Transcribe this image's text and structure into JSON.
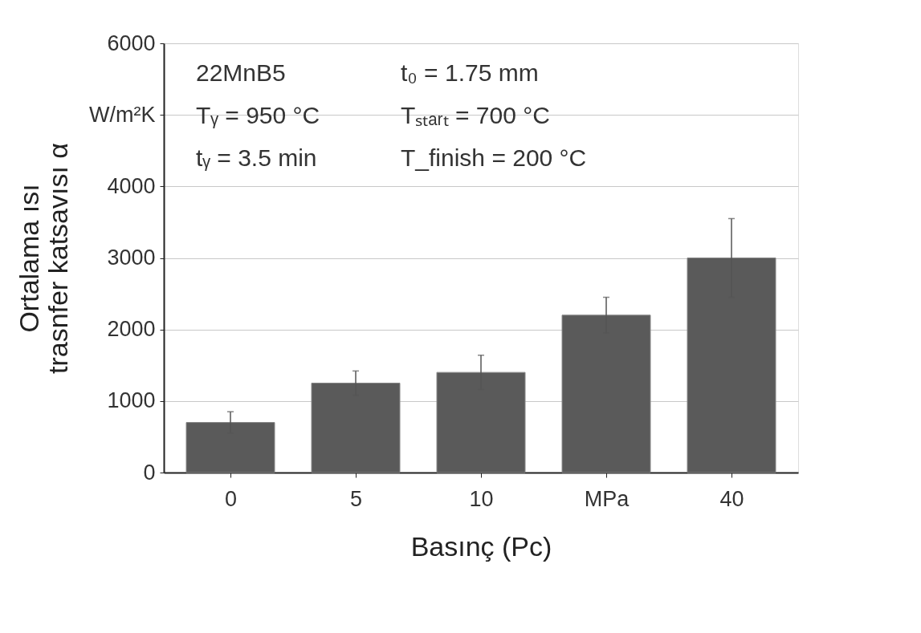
{
  "chart_data": {
    "type": "bar",
    "xlabel": "Basınç (Pc)",
    "ylabel": [
      "Ortalama ısı",
      "trasnfer katsavısı α"
    ],
    "categories": [
      "0",
      "5",
      "10",
      "MPa",
      "40"
    ],
    "values": [
      700,
      1250,
      1400,
      2200,
      3000
    ],
    "errors": [
      150,
      170,
      240,
      250,
      550
    ],
    "color": "#5a5a5a",
    "ylim": [
      0,
      6000
    ],
    "yticks": [
      0,
      1000,
      2000,
      3000,
      4000,
      {
        "value": 5000,
        "label": "W/m²K"
      },
      6000
    ],
    "grid": "y",
    "annotations": [
      "22MnB5",
      "t₀ = 1.75 mm",
      "Tᵧ = 950 °C",
      "Tₛₜₐᵣₜ = 700 °C",
      "tᵧ = 3.5 min",
      "T_finish = 200 °C"
    ]
  }
}
